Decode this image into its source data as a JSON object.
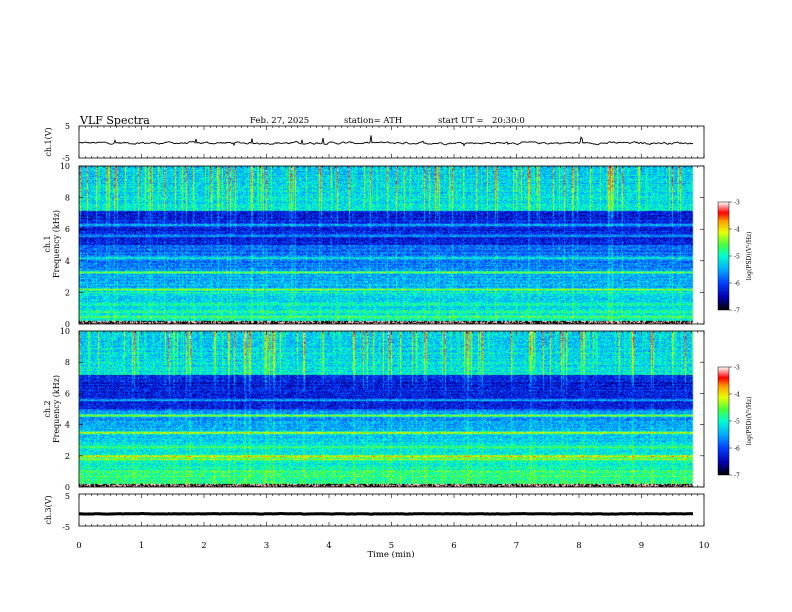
{
  "header": {
    "title": "VLF Spectra",
    "date": "Feb. 27, 2025",
    "station": "station= ATH",
    "start_label": "start UT =",
    "start_time": "20:30:0"
  },
  "chart_data": [
    {
      "type": "line",
      "panel": "ch1-waveform",
      "ylabel": "ch.1(V)",
      "ylim": [
        -5,
        5
      ],
      "yticks": [
        "5",
        "-5"
      ],
      "xlim": [
        0,
        10
      ],
      "data_end_min": 9.83,
      "baseline_v": -0.3,
      "noise_v": 0.5
    },
    {
      "type": "heatmap",
      "panel": "ch1-spectrogram",
      "ylabel": "ch.1\nFrequency (kHz)",
      "ylim": [
        0,
        10
      ],
      "yticks": [
        "0",
        "2",
        "4",
        "6",
        "8",
        "10"
      ],
      "xlim": [
        0,
        10
      ],
      "data_end_min": 9.83,
      "colorbar": {
        "label": "log(PSD)(V²/Hz)",
        "range": [
          -7,
          -3
        ],
        "ticks": [
          "-3",
          "-4",
          "-5",
          "-6",
          "-7"
        ]
      },
      "bands_khz": [
        {
          "f": 0.5,
          "level": -4.6
        },
        {
          "f": 0.8,
          "level": -4.8
        },
        {
          "f": 1.3,
          "level": -5.0
        },
        {
          "f": 2.0,
          "level": -4.9
        },
        {
          "f": 2.2,
          "level": -4.3
        },
        {
          "f": 3.3,
          "level": -4.4
        },
        {
          "f": 4.2,
          "level": -5.1
        },
        {
          "f": 5.6,
          "level": -5.3
        },
        {
          "f": 6.3,
          "level": -5.2
        }
      ]
    },
    {
      "type": "heatmap",
      "panel": "ch2-spectrogram",
      "ylabel": "ch.2\nFrequency (kHz)",
      "ylim": [
        0,
        10
      ],
      "yticks": [
        "0",
        "2",
        "4",
        "6",
        "8",
        "10"
      ],
      "xlim": [
        0,
        10
      ],
      "data_end_min": 9.83,
      "colorbar": {
        "label": "log(PSD)(V²/Hz)",
        "range": [
          -7,
          -3
        ],
        "ticks": [
          "-3",
          "-4",
          "-5",
          "-6",
          "-7"
        ]
      },
      "bands_khz": [
        {
          "f": 0.7,
          "level": -4.7
        },
        {
          "f": 1.0,
          "level": -4.5
        },
        {
          "f": 1.8,
          "level": -4.4
        },
        {
          "f": 2.0,
          "level": -3.9
        },
        {
          "f": 2.6,
          "level": -4.6
        },
        {
          "f": 3.5,
          "level": -3.9
        },
        {
          "f": 4.6,
          "level": -4.3
        },
        {
          "f": 5.6,
          "level": -5.3
        }
      ]
    },
    {
      "type": "line",
      "panel": "ch3-waveform",
      "ylabel": "ch.3(V)",
      "ylim": [
        -5,
        5
      ],
      "yticks": [
        "5",
        "-5"
      ],
      "xlim": [
        0,
        10
      ],
      "data_end_min": 9.83,
      "baseline_v": -1.2,
      "noise_v": 0.1
    }
  ],
  "xaxis": {
    "label": "Time (min)",
    "ticks": [
      "0",
      "1",
      "2",
      "3",
      "4",
      "5",
      "6",
      "7",
      "8",
      "9",
      "10"
    ]
  },
  "colors": {
    "colormap": [
      "#000000",
      "#0000b0",
      "#0040ff",
      "#00b0ff",
      "#00ffd0",
      "#40ff40",
      "#e8ff00",
      "#ffa000",
      "#ff0000",
      "#ffffff"
    ],
    "axis": "#000000",
    "waveform": "#000000"
  }
}
